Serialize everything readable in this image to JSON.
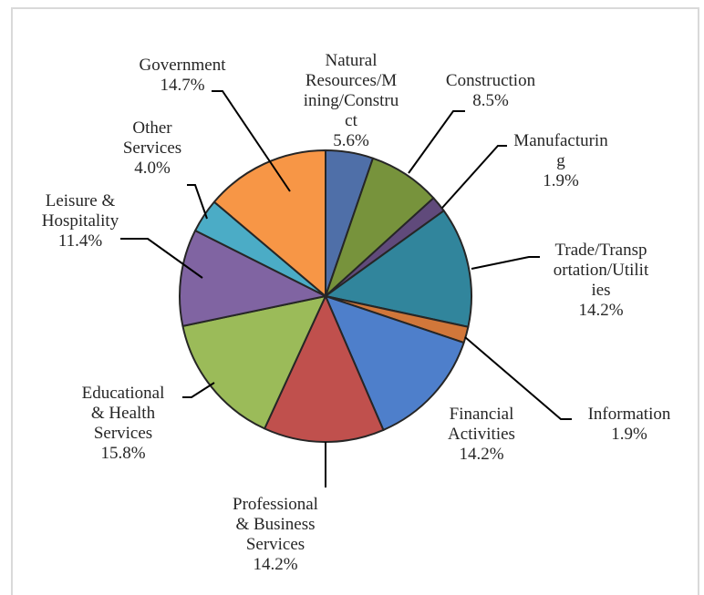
{
  "chart_data": {
    "type": "pie",
    "title": "",
    "slices": [
      {
        "name": "Natural Resources/Mining/Construct",
        "label_lines": [
          "Natural",
          "Resources/M",
          "ining/Constru",
          "ct",
          "5.6%"
        ],
        "value": 5.6,
        "color": "#4f6fa8"
      },
      {
        "name": "Construction",
        "label_lines": [
          "Construction",
          "8.5%"
        ],
        "value": 8.5,
        "color": "#77933c"
      },
      {
        "name": "Manufacturing",
        "label_lines": [
          "Manufacturin",
          "g",
          "1.9%"
        ],
        "value": 1.9,
        "color": "#604a7b"
      },
      {
        "name": "Trade/Transportation/Utilities",
        "label_lines": [
          "Trade/Transp",
          "ortation/Utilit",
          "ies",
          "14.2%"
        ],
        "value": 14.2,
        "color": "#31859c"
      },
      {
        "name": "Information",
        "label_lines": [
          "Information",
          "1.9%"
        ],
        "value": 1.9,
        "color": "#d1773a"
      },
      {
        "name": "Financial Activities",
        "label_lines": [
          "Financial",
          "Activities",
          "14.2%"
        ],
        "value": 14.2,
        "color": "#4e7fcb"
      },
      {
        "name": "Professional & Business Services",
        "label_lines": [
          "Professional",
          "& Business",
          "Services",
          "14.2%"
        ],
        "value": 14.2,
        "color": "#c0504d"
      },
      {
        "name": "Educational & Health Services",
        "label_lines": [
          "Educational",
          "& Health",
          "Services",
          "15.8%"
        ],
        "value": 15.8,
        "color": "#9bbb59"
      },
      {
        "name": "Leisure & Hospitality",
        "label_lines": [
          "Leisure &",
          "Hospitality",
          "11.4%"
        ],
        "value": 11.4,
        "color": "#8064a2"
      },
      {
        "name": "Other Services",
        "label_lines": [
          "Other",
          "Services",
          "4.0%"
        ],
        "value": 4.0,
        "color": "#4bacc6"
      },
      {
        "name": "Government",
        "label_lines": [
          "Government",
          "14.7%"
        ],
        "value": 14.7,
        "color": "#f79646"
      }
    ],
    "legend": "none",
    "labels": "outside with leader lines"
  }
}
